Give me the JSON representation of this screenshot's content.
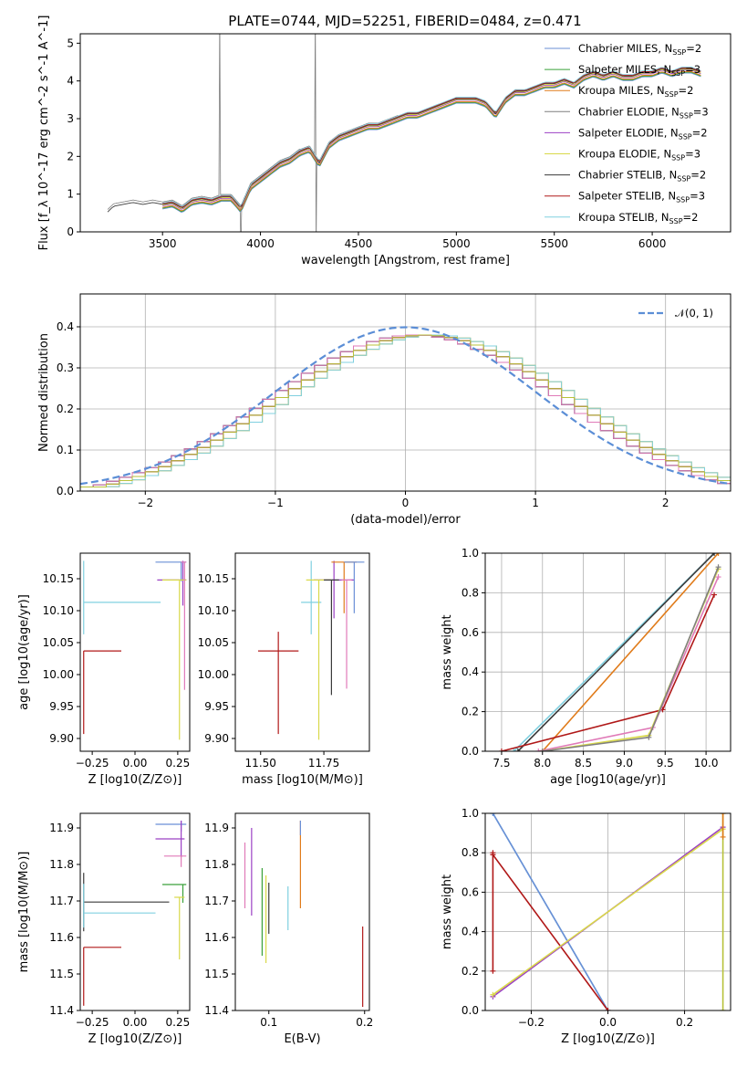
{
  "page_title": "PLATE=0744, MJD=52251, FIBERID=0484, z=0.471",
  "colors": {
    "chabrier_miles": "#6a8fd6",
    "salpeter_miles": "#3aa13a",
    "kroupa_miles": "#e07b1a",
    "chabrier_elodie": "#7f7f7f",
    "salpeter_elodie": "#9b40c4",
    "kroupa_elodie": "#d9d94a",
    "chabrier_stelib": "#3a3a3a",
    "salpeter_stelib": "#b01818",
    "kroupa_stelib": "#80d0e0",
    "pink": "#e07ab8",
    "olive": "#b8c23a"
  },
  "chart_data": [
    {
      "id": "spectrum",
      "type": "line",
      "title": "PLATE=0744, MJD=52251, FIBERID=0484, z=0.471",
      "xlabel": "wavelength [Angstrom, rest frame]",
      "ylabel": "Flux [f_λ 10^-17 erg cm^-2 s^-1 A^-1]",
      "xlim": [
        3080,
        6400
      ],
      "ylim": [
        0,
        5.25
      ],
      "xticks": [
        "3500",
        "4000",
        "4500",
        "5000",
        "5500",
        "6000"
      ],
      "yticks": [
        "0",
        "1",
        "2",
        "3",
        "4",
        "5"
      ],
      "legend_position": "top-right",
      "legend": [
        {
          "name": "Chabrier MILES, N_SSP=2",
          "color": "#6a8fd6"
        },
        {
          "name": "Salpeter MILES, N_SSP=3",
          "color": "#3aa13a"
        },
        {
          "name": "Kroupa MILES, N_SSP=2",
          "color": "#e07b1a"
        },
        {
          "name": "Chabrier ELODIE, N_SSP=3",
          "color": "#7f7f7f"
        },
        {
          "name": "Salpeter ELODIE, N_SSP=2",
          "color": "#9b40c4"
        },
        {
          "name": "Kroupa ELODIE, N_SSP=3",
          "color": "#d9d94a"
        },
        {
          "name": "Chabrier STELIB, N_SSP=2",
          "color": "#3a3a3a"
        },
        {
          "name": "Salpeter STELIB, N_SSP=3",
          "color": "#b01818"
        },
        {
          "name": "Kroupa STELIB, N_SSP=2",
          "color": "#80d0e0"
        }
      ],
      "x": [
        3220,
        3250,
        3300,
        3350,
        3400,
        3450,
        3500,
        3550,
        3600,
        3650,
        3700,
        3750,
        3800,
        3850,
        3900,
        3950,
        4000,
        4050,
        4100,
        4150,
        4200,
        4250,
        4300,
        4350,
        4400,
        4450,
        4500,
        4550,
        4600,
        4650,
        4700,
        4750,
        4800,
        4850,
        4900,
        4950,
        5000,
        5050,
        5100,
        5150,
        5200,
        5250,
        5300,
        5350,
        5400,
        5450,
        5500,
        5550,
        5600,
        5650,
        5700,
        5750,
        5800,
        5850,
        5900,
        5950,
        6000,
        6050,
        6100,
        6150,
        6200,
        6250
      ],
      "y": [
        0.6,
        0.75,
        0.8,
        0.85,
        0.8,
        0.85,
        0.8,
        0.85,
        0.7,
        0.9,
        0.95,
        0.9,
        1.0,
        1.0,
        0.7,
        1.3,
        1.5,
        1.7,
        1.9,
        2.0,
        2.2,
        2.3,
        1.9,
        2.4,
        2.6,
        2.7,
        2.8,
        2.9,
        2.9,
        3.0,
        3.1,
        3.2,
        3.2,
        3.3,
        3.4,
        3.5,
        3.6,
        3.6,
        3.6,
        3.5,
        3.2,
        3.6,
        3.8,
        3.8,
        3.9,
        4.0,
        4.0,
        4.1,
        4.0,
        4.2,
        4.3,
        4.2,
        4.3,
        4.2,
        4.2,
        4.3,
        4.3,
        4.4,
        4.3,
        4.4,
        4.4,
        4.3
      ]
    },
    {
      "id": "residuals",
      "type": "histogram",
      "xlabel": "(data-model)/error",
      "ylabel": "Normed distribution",
      "xlim": [
        -2.5,
        2.5
      ],
      "ylim": [
        0,
        0.48
      ],
      "xticks": [
        "-2",
        "-1",
        "0",
        "1",
        "2"
      ],
      "yticks": [
        "0.0",
        "0.1",
        "0.2",
        "0.3",
        "0.4"
      ],
      "grid": true,
      "legend_position": "top-right",
      "legend": [
        {
          "name": "𝒩(0, 1)",
          "color": "#5b8ed6"
        }
      ],
      "bin_edges_start": -2.5,
      "bin_width": 0.1
    },
    {
      "id": "age-vs-Z",
      "type": "errorbar",
      "xlabel": "Z [log10(Z/Z⊙)]",
      "ylabel": "age  [log10(age/yr)]",
      "xlim": [
        -0.32,
        0.32
      ],
      "ylim": [
        9.88,
        10.19
      ],
      "xticks": [
        "-0.25",
        "0.00",
        "0.25"
      ],
      "yticks": [
        "9.90",
        "9.95",
        "10.00",
        "10.05",
        "10.10",
        "10.15"
      ],
      "points": [
        {
          "x": -0.3,
          "y": 10.113,
          "xerr": [
            0,
            0.45
          ],
          "yerr": [
            0.05,
            0.065
          ],
          "color": "#80d0e0"
        },
        {
          "x": -0.3,
          "y": 10.037,
          "xerr": [
            0,
            0.22
          ],
          "yerr": [
            0.13,
            0.0
          ],
          "color": "#b01818"
        },
        {
          "x": 0.28,
          "y": 10.148,
          "xerr": [
            0.15,
            0.02
          ],
          "yerr": [
            0.04,
            0.03
          ],
          "color": "#9b40c4"
        },
        {
          "x": 0.27,
          "y": 10.176,
          "xerr": [
            0.15,
            0.03
          ],
          "yerr": [
            0.03,
            0.0
          ],
          "color": "#6a8fd6"
        },
        {
          "x": 0.26,
          "y": 10.148,
          "xerr": [
            0.1,
            0.04
          ],
          "yerr": [
            0.25,
            0.0
          ],
          "color": "#d9d94a"
        },
        {
          "x": 0.29,
          "y": 10.176,
          "xerr": [
            0.02,
            0.01
          ],
          "yerr": [
            0.2,
            0.0
          ],
          "color": "#e07ab8"
        }
      ]
    },
    {
      "id": "age-vs-mass",
      "type": "errorbar",
      "xlabel": "mass [log10(M/M⊙)]",
      "ylabel": "",
      "xlim": [
        11.4,
        11.93
      ],
      "ylim": [
        9.88,
        10.19
      ],
      "xticks": [
        "11.50",
        "11.75"
      ],
      "yticks": [
        "9.90",
        "9.95",
        "10.00",
        "10.05",
        "10.10",
        "10.15"
      ],
      "points": [
        {
          "x": 11.57,
          "y": 10.037,
          "xerr": [
            0.08,
            0.08
          ],
          "yerr": [
            0.13,
            0.03
          ],
          "color": "#b01818"
        },
        {
          "x": 11.7,
          "y": 10.113,
          "xerr": [
            0.04,
            0.04
          ],
          "yerr": [
            0.05,
            0.065
          ],
          "color": "#80d0e0"
        },
        {
          "x": 11.79,
          "y": 10.148,
          "xerr": [
            0.08,
            0.08
          ],
          "yerr": [
            0.06,
            0.03
          ],
          "color": "#9b40c4"
        },
        {
          "x": 11.83,
          "y": 10.176,
          "xerr": [
            0.05,
            0.05
          ],
          "yerr": [
            0.08,
            0.0
          ],
          "color": "#e07b1a"
        },
        {
          "x": 11.87,
          "y": 10.176,
          "xerr": [
            0.04,
            0.04
          ],
          "yerr": [
            0.08,
            0.0
          ],
          "color": "#6a8fd6"
        },
        {
          "x": 11.73,
          "y": 10.148,
          "xerr": [
            0.05,
            0.05
          ],
          "yerr": [
            0.25,
            0.0
          ],
          "color": "#d9d94a"
        },
        {
          "x": 11.78,
          "y": 10.148,
          "xerr": [
            0.03,
            0.03
          ],
          "yerr": [
            0.18,
            0.0
          ],
          "color": "#3a3a3a"
        },
        {
          "x": 11.84,
          "y": 10.148,
          "xerr": [
            0.02,
            0.02
          ],
          "yerr": [
            0.17,
            0.0
          ],
          "color": "#e07ab8"
        }
      ]
    },
    {
      "id": "massweight-vs-age",
      "type": "line",
      "xlabel": "age  [log10(age/yr)]",
      "ylabel": "mass weight",
      "xlim": [
        7.3,
        10.3
      ],
      "ylim": [
        0,
        1.0
      ],
      "xticks": [
        "7.5",
        "8.0",
        "8.5",
        "9.0",
        "9.5",
        "10.0"
      ],
      "yticks": [
        "0.0",
        "0.2",
        "0.4",
        "0.6",
        "0.8",
        "1.0"
      ],
      "grid": true,
      "series": [
        {
          "color": "#80d0e0",
          "x": [
            7.65,
            10.1
          ],
          "y": [
            0,
            1.0
          ]
        },
        {
          "color": "#3a3a3a",
          "x": [
            7.7,
            10.1
          ],
          "y": [
            0,
            1.0
          ]
        },
        {
          "color": "#e07b1a",
          "x": [
            8.0,
            10.15
          ],
          "y": [
            0,
            1.0
          ]
        },
        {
          "color": "#b01818",
          "x": [
            7.5,
            9.47,
            10.1
          ],
          "y": [
            0,
            0.21,
            0.79
          ]
        },
        {
          "color": "#e07ab8",
          "x": [
            7.95,
            9.35,
            10.15
          ],
          "y": [
            0,
            0.12,
            0.88
          ]
        },
        {
          "color": "#d9d94a",
          "x": [
            8.0,
            9.3,
            10.15
          ],
          "y": [
            0,
            0.08,
            0.92
          ]
        },
        {
          "color": "#7f7f7f",
          "x": [
            8.0,
            9.3,
            10.15
          ],
          "y": [
            0,
            0.07,
            0.93
          ]
        }
      ]
    },
    {
      "id": "mass-vs-Z",
      "type": "errorbar",
      "xlabel": "Z [log10(Z/Z⊙)]",
      "ylabel": "mass [log10(M/M⊙)]",
      "xlim": [
        -0.32,
        0.32
      ],
      "ylim": [
        11.4,
        11.94
      ],
      "xticks": [
        "-0.25",
        "0.00",
        "0.25"
      ],
      "yticks": [
        "11.4",
        "11.5",
        "11.6",
        "11.7",
        "11.8",
        "11.9"
      ],
      "points": [
        {
          "x": -0.3,
          "y": 11.573,
          "xerr": [
            0,
            0.22
          ],
          "yerr": [
            0.16,
            0.0
          ],
          "color": "#b01818"
        },
        {
          "x": -0.3,
          "y": 11.697,
          "xerr": [
            0,
            0.5
          ],
          "yerr": [
            0.08,
            0.08
          ],
          "color": "#3a3a3a"
        },
        {
          "x": -0.3,
          "y": 11.667,
          "xerr": [
            0,
            0.42
          ],
          "yerr": [
            0.04,
            0.08
          ],
          "color": "#80d0e0"
        },
        {
          "x": 0.27,
          "y": 11.91,
          "xerr": [
            0.15,
            0.03
          ],
          "yerr": [
            0.02,
            0.01
          ],
          "color": "#6a8fd6"
        },
        {
          "x": 0.27,
          "y": 11.87,
          "xerr": [
            0.15,
            0.02
          ],
          "yerr": [
            0.05,
            0.05
          ],
          "color": "#9b40c4"
        },
        {
          "x": 0.27,
          "y": 11.823,
          "xerr": [
            0.1,
            0.03
          ],
          "yerr": [
            0.03,
            0.0
          ],
          "color": "#e07ab8"
        },
        {
          "x": 0.28,
          "y": 11.745,
          "xerr": [
            0.12,
            0.02
          ],
          "yerr": [
            0.05,
            0.0
          ],
          "color": "#3aa13a"
        },
        {
          "x": 0.26,
          "y": 11.71,
          "xerr": [
            0.03,
            0.03
          ],
          "yerr": [
            0.17,
            0.0
          ],
          "color": "#d9d94a"
        }
      ]
    },
    {
      "id": "mass-vs-EBV",
      "type": "errorbar",
      "xlabel": "E(B-V)",
      "ylabel": "",
      "xlim": [
        0.065,
        0.205
      ],
      "ylim": [
        11.4,
        11.94
      ],
      "xticks": [
        "0.1",
        "0.2"
      ],
      "yticks": [
        "11.4",
        "11.5",
        "11.6",
        "11.7",
        "11.8",
        "11.9"
      ],
      "points": [
        {
          "x": 0.075,
          "y": 11.77,
          "xerr": [
            0,
            0
          ],
          "yerr": [
            0.09,
            0.09
          ],
          "color": "#e07ab8"
        },
        {
          "x": 0.082,
          "y": 11.78,
          "xerr": [
            0,
            0
          ],
          "yerr": [
            0.12,
            0.12
          ],
          "color": "#9b40c4"
        },
        {
          "x": 0.093,
          "y": 11.67,
          "xerr": [
            0,
            0
          ],
          "yerr": [
            0.12,
            0.12
          ],
          "color": "#3aa13a"
        },
        {
          "x": 0.097,
          "y": 11.65,
          "xerr": [
            0,
            0
          ],
          "yerr": [
            0.12,
            0.12
          ],
          "color": "#d9d94a"
        },
        {
          "x": 0.1,
          "y": 11.68,
          "xerr": [
            0,
            0
          ],
          "yerr": [
            0.07,
            0.07
          ],
          "color": "#3a3a3a"
        },
        {
          "x": 0.12,
          "y": 11.68,
          "xerr": [
            0,
            0
          ],
          "yerr": [
            0.06,
            0.06
          ],
          "color": "#80d0e0"
        },
        {
          "x": 0.133,
          "y": 11.8,
          "xerr": [
            0,
            0
          ],
          "yerr": [
            0.12,
            0.12
          ],
          "color": "#e07b1a"
        },
        {
          "x": 0.133,
          "y": 11.9,
          "xerr": [
            0,
            0
          ],
          "yerr": [
            0.02,
            0.02
          ],
          "color": "#6a8fd6"
        },
        {
          "x": 0.198,
          "y": 11.52,
          "xerr": [
            0,
            0
          ],
          "yerr": [
            0.11,
            0.11
          ],
          "color": "#b01818"
        }
      ]
    },
    {
      "id": "massweight-vs-Z",
      "type": "line",
      "xlabel": "Z [log10(Z/Z⊙)]",
      "ylabel": "mass weight",
      "xlim": [
        -0.32,
        0.32
      ],
      "ylim": [
        0,
        1.0
      ],
      "xticks": [
        "-0.2",
        "0.0",
        "0.2"
      ],
      "yticks": [
        "0.0",
        "0.2",
        "0.4",
        "0.6",
        "0.8",
        "1.0"
      ],
      "grid": true,
      "series": [
        {
          "color": "#80d0e0",
          "x": [
            -0.3,
            0.0
          ],
          "y": [
            1.0,
            0.0
          ]
        },
        {
          "color": "#6a8fd6",
          "x": [
            -0.3,
            0.0
          ],
          "y": [
            1.0,
            0.0
          ]
        },
        {
          "color": "#b01818",
          "x": [
            -0.3,
            -0.3,
            -0.3,
            0.0
          ],
          "y": [
            0.2,
            0.8,
            0.79,
            0.0
          ]
        },
        {
          "color": "#9b40c4",
          "x": [
            -0.3,
            0.3
          ],
          "y": [
            0.07,
            0.93
          ]
        },
        {
          "color": "#d9d94a",
          "x": [
            -0.3,
            0.3
          ],
          "y": [
            0.08,
            0.92
          ]
        },
        {
          "color": "#b8c23a",
          "x": [
            0.3,
            0.3
          ],
          "y": [
            0,
            1.0
          ]
        },
        {
          "color": "#e07b1a",
          "x": [
            0.3,
            0.3
          ],
          "y": [
            0.88,
            1.0
          ]
        }
      ]
    }
  ]
}
